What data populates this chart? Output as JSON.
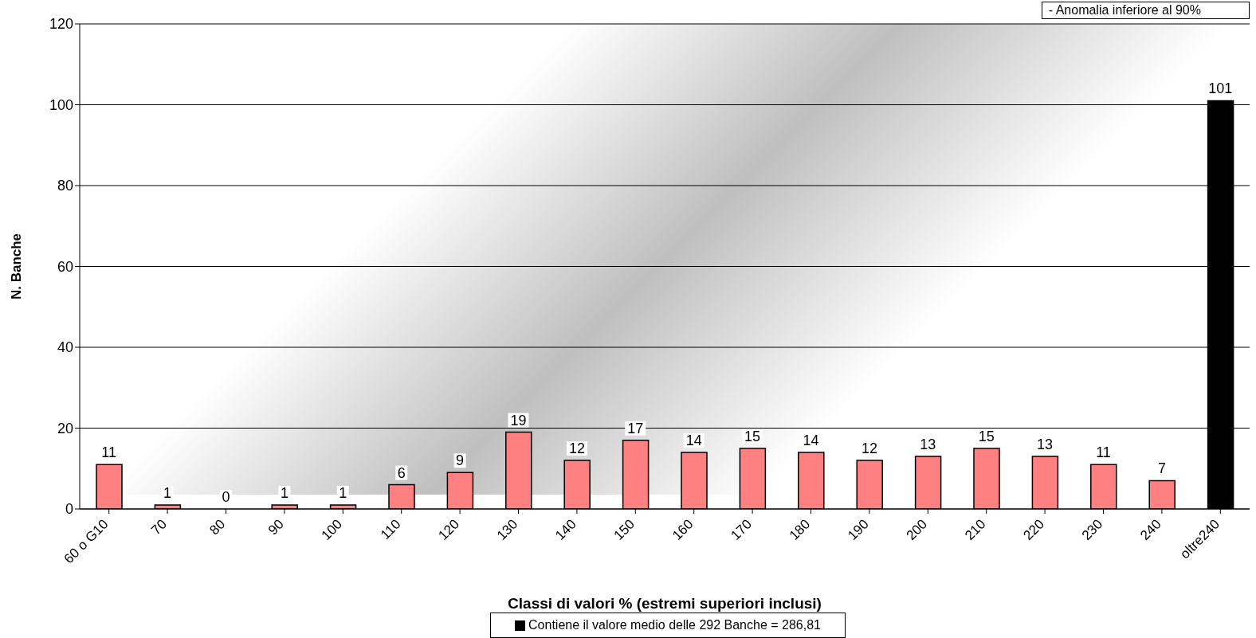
{
  "chart_data": {
    "type": "bar",
    "xlabel": "Classi di valori % (estremi superiori inclusi)",
    "ylabel": "N. Banche",
    "categories": [
      "60 o G10",
      "70",
      "80",
      "90",
      "100",
      "110",
      "120",
      "130",
      "140",
      "150",
      "160",
      "170",
      "180",
      "190",
      "200",
      "210",
      "220",
      "230",
      "240",
      "oltre240"
    ],
    "stacked": true,
    "series": [
      {
        "color": "#ff8080",
        "values": [
          11,
          1,
          0,
          1,
          1,
          6,
          9,
          19,
          12,
          17,
          14,
          15,
          14,
          12,
          13,
          15,
          13,
          11,
          7,
          null
        ]
      },
      {
        "name": "Contiene il valore medio delle 292 Banche = 286,81",
        "color": "#000000",
        "values": [
          null,
          null,
          null,
          null,
          null,
          null,
          null,
          null,
          null,
          null,
          null,
          null,
          null,
          null,
          null,
          null,
          null,
          null,
          null,
          101
        ]
      }
    ],
    "ylim": [
      0,
      120
    ],
    "yticks": [
      0,
      20,
      40,
      60,
      80,
      100,
      120
    ],
    "grid": "y",
    "data_labels": true,
    "legend": "bottom",
    "annotations": [
      "- Anomalia inferiore al 90%"
    ]
  }
}
